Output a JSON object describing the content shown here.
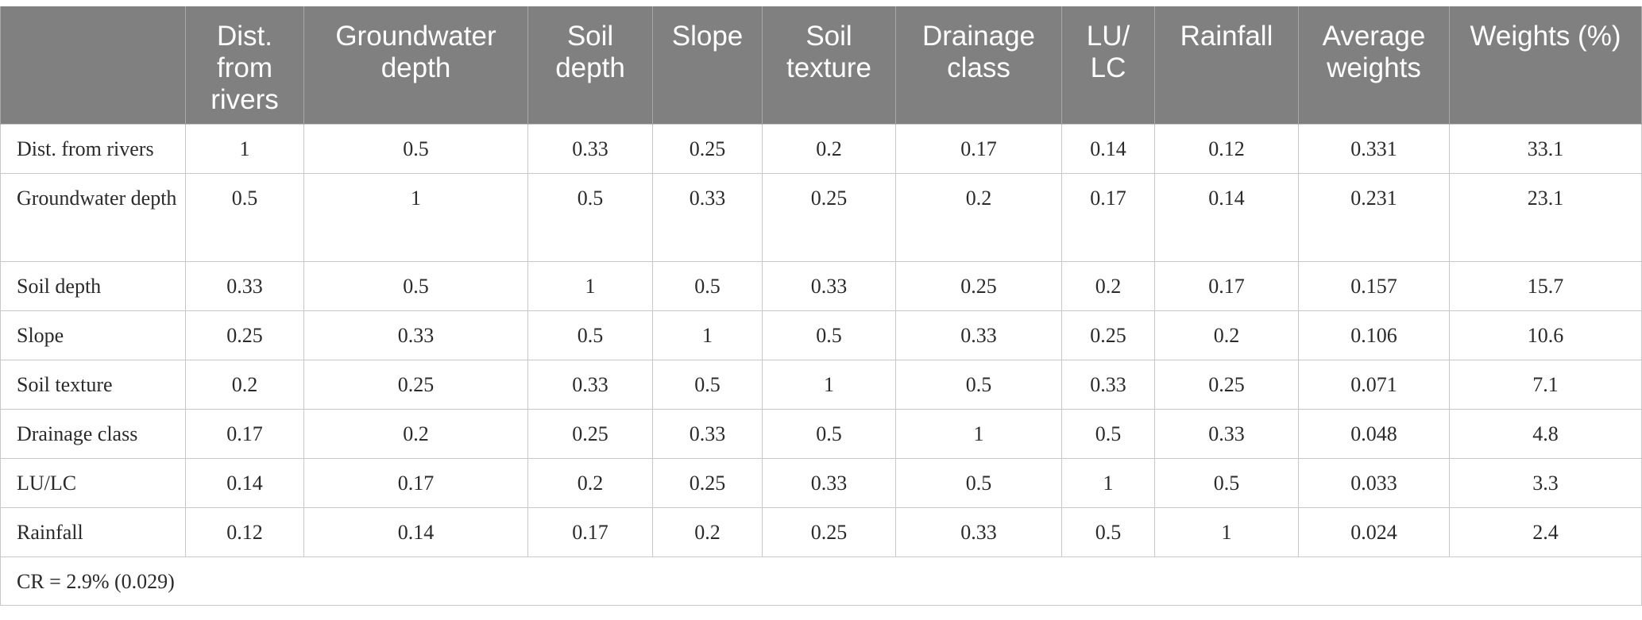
{
  "table": {
    "headers": [
      "",
      "Dist. from rivers",
      "Groundwater depth",
      "Soil depth",
      "Slope",
      "Soil texture",
      "Drainage class",
      "LU/ LC",
      "Rainfall",
      "Average weights",
      "Weights (%)"
    ],
    "rows": [
      {
        "label": "Dist. from rivers",
        "cells": [
          "1",
          "0.5",
          "0.33",
          "0.25",
          "0.2",
          "0.17",
          "0.14",
          "0.12",
          "0.331",
          "33.1"
        ]
      },
      {
        "label": "Groundwater depth",
        "cells": [
          "0.5",
          "1",
          "0.5",
          "0.33",
          "0.25",
          "0.2",
          "0.17",
          "0.14",
          "0.231",
          "23.1"
        ]
      },
      {
        "label": "Soil depth",
        "cells": [
          "0.33",
          "0.5",
          "1",
          "0.5",
          "0.33",
          "0.25",
          "0.2",
          "0.17",
          "0.157",
          "15.7"
        ]
      },
      {
        "label": "Slope",
        "cells": [
          "0.25",
          "0.33",
          "0.5",
          "1",
          "0.5",
          "0.33",
          "0.25",
          "0.2",
          "0.106",
          "10.6"
        ]
      },
      {
        "label": "Soil texture",
        "cells": [
          "0.2",
          "0.25",
          "0.33",
          "0.5",
          "1",
          "0.5",
          "0.33",
          "0.25",
          "0.071",
          "7.1"
        ]
      },
      {
        "label": "Drainage class",
        "cells": [
          "0.17",
          "0.2",
          "0.25",
          "0.33",
          "0.5",
          "1",
          "0.5",
          "0.33",
          "0.048",
          "4.8"
        ]
      },
      {
        "label": "LU/LC",
        "cells": [
          "0.14",
          "0.17",
          "0.2",
          "0.25",
          "0.33",
          "0.5",
          "1",
          "0.5",
          "0.033",
          "3.3"
        ]
      },
      {
        "label": "Rainfall",
        "cells": [
          "0.12",
          "0.14",
          "0.17",
          "0.2",
          "0.25",
          "0.33",
          "0.5",
          "1",
          "0.024",
          "2.4"
        ]
      }
    ],
    "footnote": "CR = 2.9% (0.029)"
  }
}
